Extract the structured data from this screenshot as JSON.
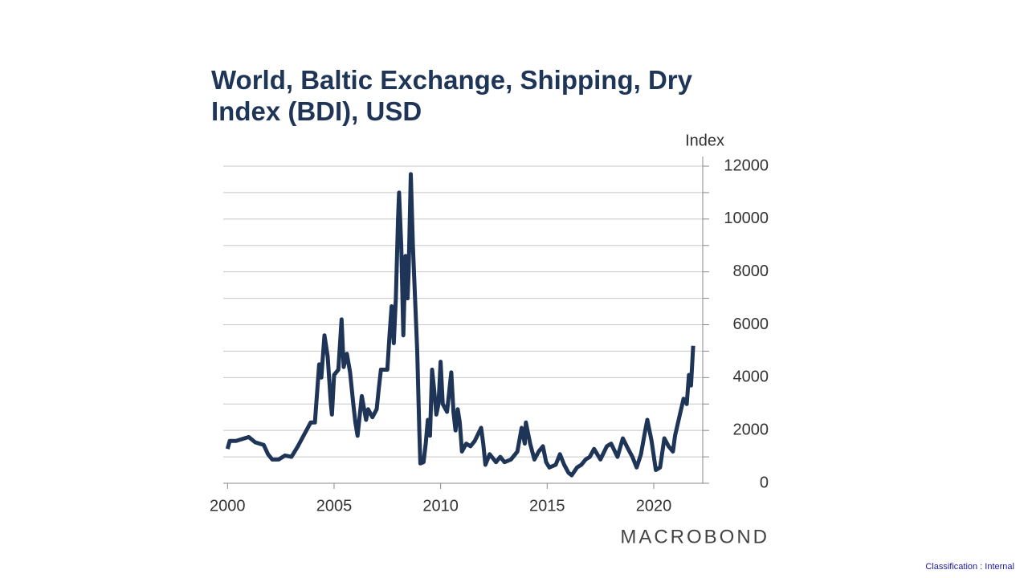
{
  "chart_data": {
    "type": "line",
    "title": "World, Baltic Exchange, Shipping, Dry Index (BDI), USD",
    "y_label": "Index",
    "logo": "MACROBOND",
    "classification": "Classification : Internal",
    "xlim": [
      1999.8,
      2022.3
    ],
    "xticks": [
      2000,
      2005,
      2010,
      2015,
      2020
    ],
    "ylim": [
      0,
      12000
    ],
    "yticks": [
      0,
      2000,
      4000,
      6000,
      8000,
      10000,
      12000
    ],
    "yminorticks": [
      1000,
      3000,
      5000,
      7000,
      9000,
      11000
    ],
    "grid": true,
    "x": [
      2000.0,
      2000.1,
      2000.4,
      2000.8,
      2001.0,
      2001.3,
      2001.7,
      2001.9,
      2002.1,
      2002.4,
      2002.7,
      2003.0,
      2003.3,
      2003.5,
      2003.7,
      2003.9,
      2004.1,
      2004.3,
      2004.4,
      2004.55,
      2004.7,
      2004.85,
      2004.9,
      2005.0,
      2005.2,
      2005.35,
      2005.45,
      2005.6,
      2005.75,
      2005.9,
      2006.0,
      2006.1,
      2006.3,
      2006.5,
      2006.6,
      2006.8,
      2007.0,
      2007.1,
      2007.2,
      2007.5,
      2007.6,
      2007.7,
      2007.8,
      2007.9,
      2008.0,
      2008.05,
      2008.15,
      2008.25,
      2008.35,
      2008.45,
      2008.5,
      2008.6,
      2008.7,
      2008.8,
      2008.9,
      2009.0,
      2009.05,
      2009.2,
      2009.3,
      2009.4,
      2009.5,
      2009.6,
      2009.7,
      2009.8,
      2009.9,
      2010.0,
      2010.1,
      2010.3,
      2010.5,
      2010.6,
      2010.7,
      2010.8,
      2010.9,
      2011.0,
      2011.2,
      2011.4,
      2011.6,
      2011.9,
      2012.0,
      2012.1,
      2012.3,
      2012.6,
      2012.8,
      2013.0,
      2013.3,
      2013.6,
      2013.8,
      2013.95,
      2014.0,
      2014.2,
      2014.4,
      2014.6,
      2014.8,
      2014.95,
      2015.1,
      2015.4,
      2015.6,
      2015.8,
      2016.0,
      2016.15,
      2016.4,
      2016.6,
      2016.8,
      2017.0,
      2017.2,
      2017.5,
      2017.8,
      2018.0,
      2018.3,
      2018.55,
      2018.8,
      2019.0,
      2019.2,
      2019.4,
      2019.6,
      2019.7,
      2019.9,
      2020.1,
      2020.3,
      2020.5,
      2020.7,
      2020.9,
      2021.0,
      2021.2,
      2021.4,
      2021.55,
      2021.65,
      2021.75,
      2021.85
    ],
    "series": [
      {
        "name": "BDI",
        "color": "#1e3558",
        "values": [
          1300,
          1600,
          1600,
          1700,
          1750,
          1550,
          1450,
          1100,
          900,
          900,
          1050,
          1000,
          1400,
          1700,
          2000,
          2300,
          2300,
          4500,
          4000,
          5600,
          4800,
          3000,
          2600,
          4100,
          4300,
          6200,
          4400,
          4900,
          4200,
          3000,
          2300,
          1800,
          3300,
          2400,
          2800,
          2500,
          2800,
          3600,
          4300,
          4300,
          5600,
          6700,
          5300,
          7000,
          10000,
          11000,
          9000,
          5600,
          8600,
          7000,
          8000,
          11700,
          9000,
          7000,
          5000,
          2000,
          750,
          800,
          1500,
          2400,
          1800,
          4300,
          3500,
          2600,
          3000,
          4600,
          3000,
          2700,
          4200,
          2700,
          2000,
          2800,
          2300,
          1200,
          1500,
          1400,
          1600,
          2100,
          1500,
          700,
          1100,
          800,
          1000,
          800,
          900,
          1200,
          2100,
          1500,
          2300,
          1500,
          900,
          1200,
          1400,
          800,
          600,
          700,
          1100,
          700,
          400,
          300,
          600,
          700,
          900,
          1000,
          1300,
          900,
          1400,
          1500,
          1000,
          1700,
          1300,
          1000,
          600,
          1100,
          2000,
          2400,
          1600,
          500,
          600,
          1700,
          1400,
          1200,
          1800,
          2500,
          3200,
          3000,
          4100,
          3700,
          5200
        ]
      }
    ]
  }
}
